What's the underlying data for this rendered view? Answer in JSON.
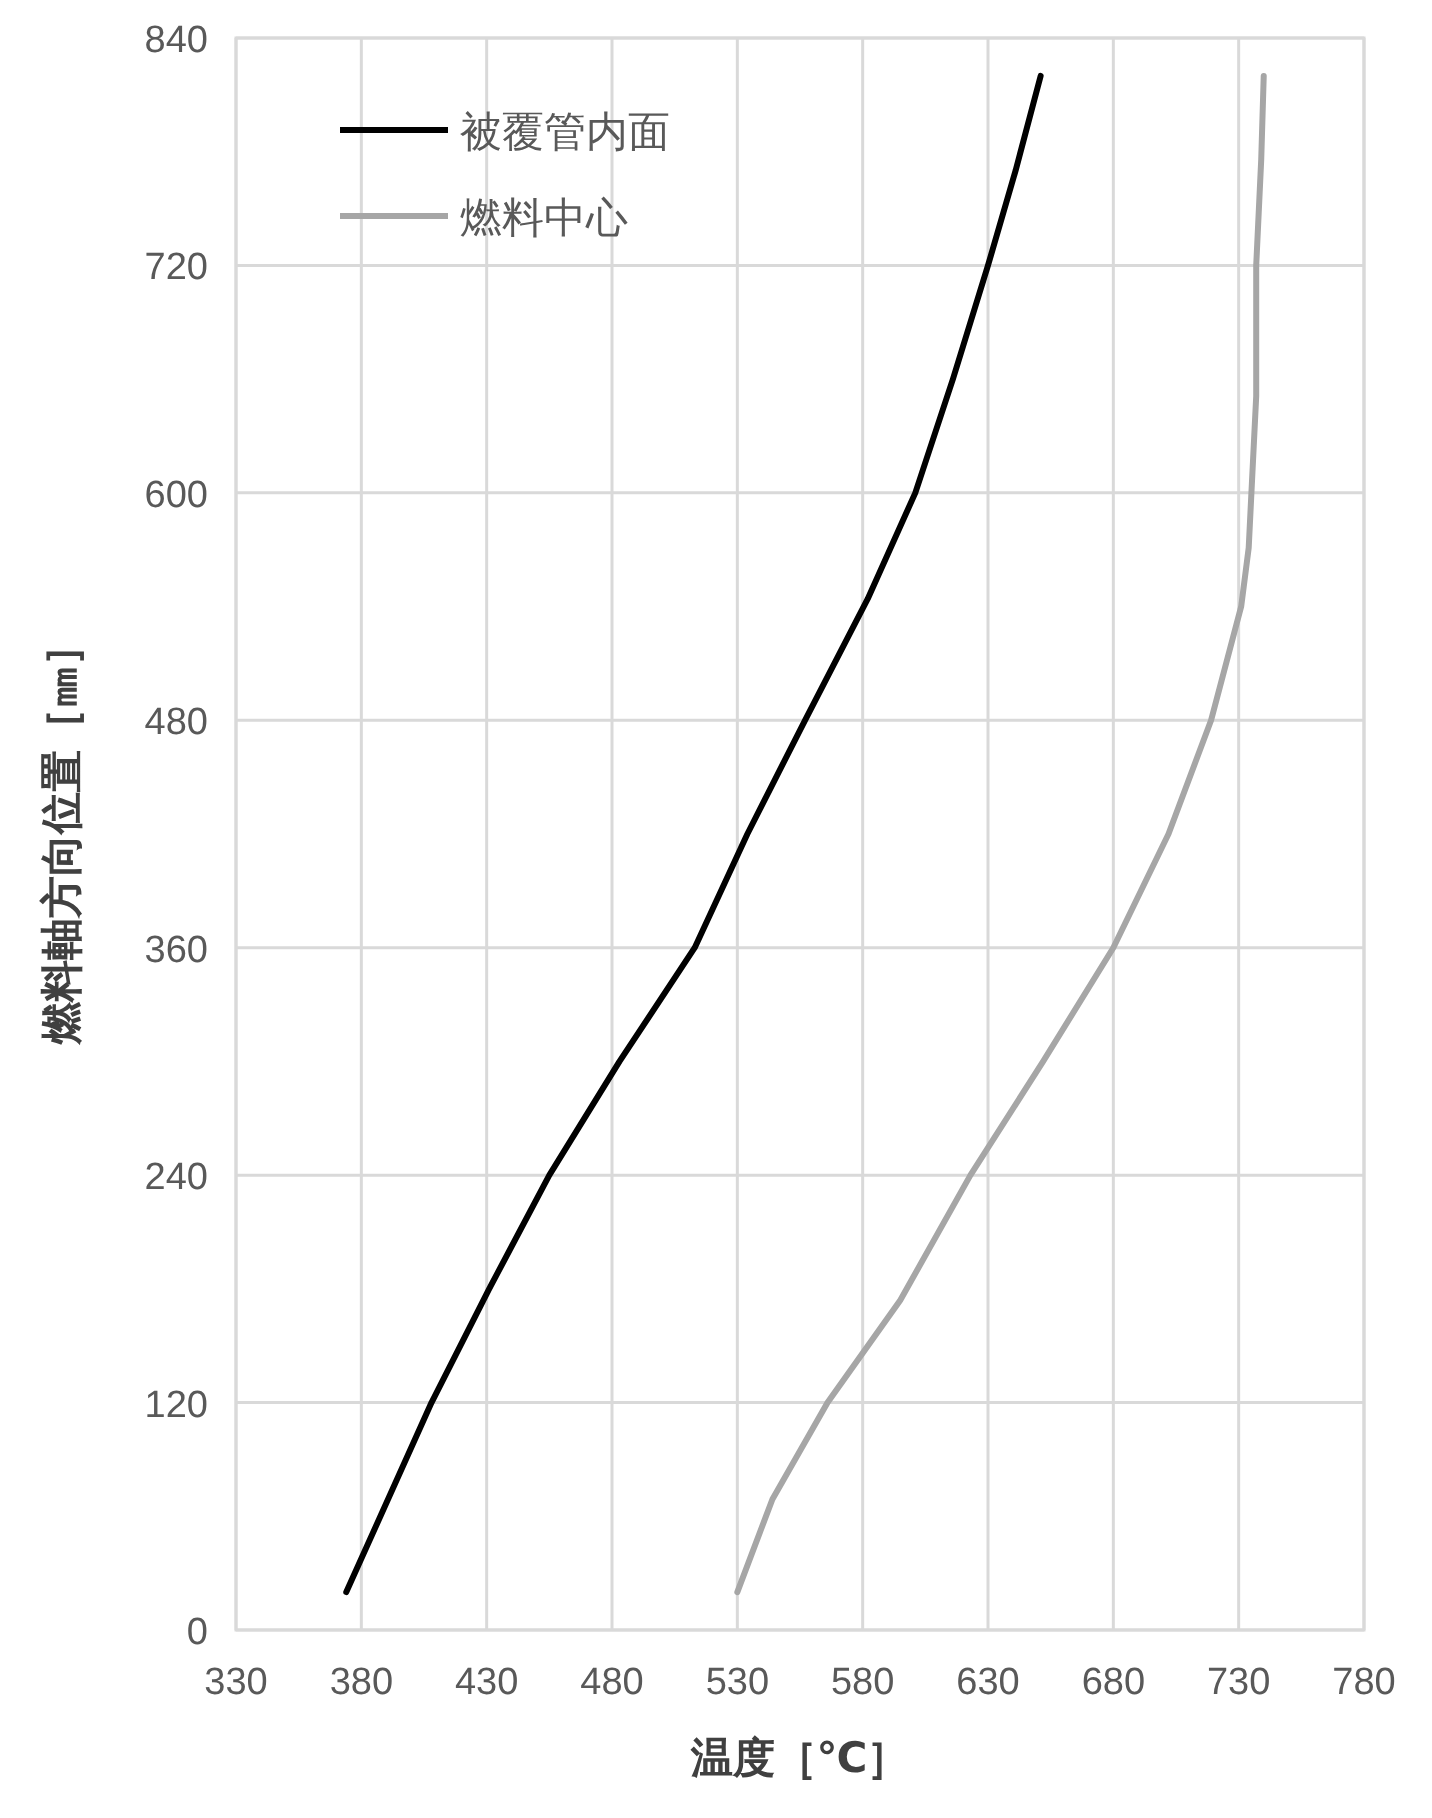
{
  "chart_data": {
    "type": "line",
    "xlabel": "温度［℃］",
    "ylabel": "燃料軸方向位置［㎜］",
    "xlim": [
      330,
      780
    ],
    "xticks": [
      330,
      380,
      430,
      480,
      530,
      580,
      630,
      680,
      730,
      780
    ],
    "ylim": [
      0,
      840
    ],
    "yticks": [
      0,
      120,
      240,
      360,
      480,
      600,
      720,
      840
    ],
    "grid": true,
    "legend": "top left",
    "marker": "none",
    "line_style": "solid",
    "series": [
      {
        "name": "被覆管内面",
        "color": "#000000",
        "x": [
          374,
          408,
          431,
          455,
          483,
          513,
          534,
          557,
          582,
          601,
          616,
          630,
          641,
          651
        ],
        "values": [
          20,
          120,
          180,
          240,
          300,
          360,
          420,
          480,
          544,
          600,
          660,
          720,
          770,
          820
        ]
      },
      {
        "name": "燃料中心",
        "color": "#a6a6a6",
        "x": [
          530,
          544,
          566,
          595,
          623,
          652,
          680,
          702,
          719,
          731,
          734,
          737,
          737,
          739,
          740
        ],
        "values": [
          20,
          69,
          120,
          174,
          240,
          300,
          360,
          420,
          480,
          540,
          571,
          651,
          720,
          776,
          820
        ]
      }
    ]
  }
}
